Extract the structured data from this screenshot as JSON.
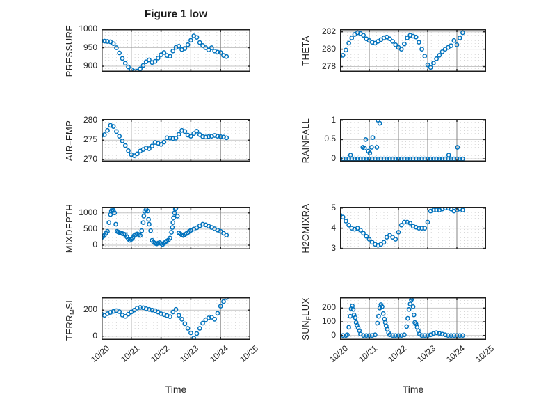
{
  "figure": {
    "title": "Figure 1 low",
    "xlabel": "Time",
    "background": "#ffffff",
    "accent_color": "#0072BD",
    "text_color": "#262626",
    "x_tick_labels": [
      "10/20",
      "10/21",
      "10/22",
      "10/23",
      "10/24",
      "10/25"
    ]
  },
  "chart_data": [
    {
      "type": "scatter",
      "name": "PRESSURE",
      "ylabel": {
        "pre": "PRESSURE",
        "sub": "",
        "post": ""
      },
      "ylim": [
        885,
        1000
      ],
      "ytick_vals": [
        900,
        950,
        1000
      ],
      "ytick_labels": [
        "900",
        "950",
        "1000"
      ],
      "xlim": [
        0,
        5
      ],
      "x0": 0,
      "xstep": 0.1,
      "y": [
        968,
        968,
        967,
        966,
        961,
        950,
        936,
        921,
        908,
        898,
        891,
        886,
        887,
        893,
        902,
        912,
        917,
        910,
        913,
        922,
        931,
        937,
        929,
        927,
        941,
        951,
        954,
        945,
        948,
        958,
        970,
        982,
        978,
        964,
        956,
        950,
        944,
        950,
        941,
        938,
        937,
        929,
        926
      ]
    },
    {
      "type": "scatter",
      "name": "THETA",
      "ylabel": {
        "pre": "THETA",
        "sub": "",
        "post": ""
      },
      "ylim": [
        277.4,
        282.3
      ],
      "ytick_vals": [
        278,
        280,
        282
      ],
      "ytick_labels": [
        "278",
        "280",
        "282"
      ],
      "xlim": [
        0,
        5
      ],
      "x0": 0,
      "xstep": 0.1,
      "y": [
        279.2,
        279.3,
        279.9,
        280.7,
        281.3,
        281.7,
        281.9,
        281.8,
        281.6,
        281.2,
        281.0,
        280.8,
        280.7,
        280.9,
        281.1,
        281.3,
        281.4,
        281.2,
        280.9,
        280.5,
        280.2,
        280.0,
        280.6,
        281.3,
        281.6,
        281.5,
        281.4,
        280.8,
        280.0,
        279.2,
        278.2,
        277.9,
        278.4,
        278.9,
        279.3,
        279.7,
        280.0,
        280.2,
        280.4,
        281.0,
        280.5,
        281.3,
        281.9
      ]
    },
    {
      "type": "scatter",
      "name": "AIR_TEMP",
      "ylabel": {
        "pre": "AIR",
        "sub": "T",
        "post": "EMP"
      },
      "ylim": [
        269.5,
        280.4
      ],
      "ytick_vals": [
        270,
        275,
        280
      ],
      "ytick_labels": [
        "270",
        "275",
        "280"
      ],
      "xlim": [
        0,
        5
      ],
      "x0": 0,
      "xstep": 0.1,
      "y": [
        276.2,
        276.4,
        277.5,
        278.8,
        278.5,
        277.2,
        276.0,
        274.8,
        273.6,
        272.3,
        271.3,
        271.0,
        271.5,
        272.2,
        272.6,
        273.0,
        272.8,
        273.5,
        274.4,
        274.2,
        273.9,
        274.5,
        275.6,
        275.5,
        275.4,
        275.5,
        276.5,
        277.5,
        277.2,
        276.3,
        276.0,
        276.7,
        277.3,
        276.4,
        275.9,
        275.8,
        275.9,
        276.0,
        276.2,
        276.0,
        275.9,
        275.8,
        275.6
      ]
    },
    {
      "type": "scatter",
      "name": "RAINFALL",
      "ylabel": {
        "pre": "RAINFALL",
        "sub": "",
        "post": ""
      },
      "ylim": [
        -0.07,
        1.03
      ],
      "ytick_vals": [
        0,
        0.5,
        1
      ],
      "ytick_labels": [
        "0",
        "0.5",
        "1"
      ],
      "xlim": [
        0,
        5
      ],
      "x": [
        0,
        0.1,
        0.2,
        0.3,
        0.4,
        0.5,
        0.6,
        0.7,
        0.8,
        0.9,
        1,
        1.1,
        1.2,
        1.3,
        1.4,
        1.5,
        1.6,
        1.7,
        1.8,
        1.9,
        2,
        2.1,
        2.2,
        2.3,
        2.4,
        2.5,
        2.6,
        2.7,
        2.8,
        2.9,
        3,
        3.1,
        3.2,
        3.3,
        3.4,
        3.5,
        3.6,
        3.7,
        3.8,
        3.9,
        4,
        4.1,
        4.2,
        0.36,
        0.78,
        0.84,
        0.88,
        0.97,
        1.02,
        1.08,
        1.12,
        1.26,
        1.3,
        1.36,
        3.72,
        4.02
      ],
      "y": [
        0,
        0,
        0,
        0,
        0,
        0,
        0,
        0,
        0,
        0,
        0,
        0,
        0,
        0,
        0,
        0,
        0,
        0,
        0,
        0,
        0,
        0,
        0,
        0,
        0,
        0,
        0,
        0,
        0,
        0,
        0,
        0,
        0,
        0,
        0,
        0,
        0,
        0,
        0,
        0,
        0,
        0,
        0,
        0.1,
        0.3,
        0.28,
        0.5,
        0.2,
        0.15,
        0.3,
        0.55,
        0.3,
        1,
        0.92,
        0.1,
        0.3
      ]
    },
    {
      "type": "scatter",
      "name": "MIXDEPTH",
      "ylabel": {
        "pre": "MIXDEPTH",
        "sub": "",
        "post": ""
      },
      "ylim": [
        -130,
        1190
      ],
      "ytick_vals": [
        0,
        500,
        1000
      ],
      "ytick_labels": [
        "0",
        "500",
        "1000"
      ],
      "xlim": [
        0,
        5
      ],
      "x": [
        0,
        0.05,
        0.1,
        0.15,
        0.2,
        0.25,
        0.3,
        0.33,
        0.36,
        0.4,
        0.44,
        0.48,
        0.52,
        0.56,
        0.6,
        0.65,
        0.7,
        0.75,
        0.8,
        0.85,
        0.9,
        0.95,
        1,
        1.05,
        1.1,
        1.15,
        1.2,
        1.25,
        1.3,
        1.35,
        1.4,
        1.42,
        1.45,
        1.5,
        1.55,
        1.58,
        1.6,
        1.65,
        1.7,
        1.75,
        1.8,
        1.85,
        1.9,
        1.95,
        2,
        2.05,
        2.1,
        2.15,
        2.2,
        2.25,
        2.3,
        2.35,
        2.38,
        2.4,
        2.42,
        2.45,
        2.48,
        2.5,
        2.55,
        2.6,
        2.65,
        2.7,
        2.75,
        2.8,
        2.85,
        2.9,
        2.95,
        3,
        3.1,
        3.2,
        3.3,
        3.4,
        3.5,
        3.6,
        3.7,
        3.8,
        3.9,
        4,
        4.1,
        4.2
      ],
      "y": [
        230,
        270,
        310,
        370,
        430,
        700,
        950,
        1060,
        1100,
        1080,
        1000,
        650,
        430,
        410,
        395,
        380,
        360,
        345,
        330,
        260,
        190,
        150,
        180,
        230,
        300,
        330,
        350,
        330,
        300,
        450,
        700,
        900,
        1050,
        1100,
        1060,
        800,
        650,
        450,
        150,
        90,
        60,
        40,
        60,
        80,
        50,
        20,
        60,
        100,
        130,
        160,
        220,
        400,
        550,
        700,
        850,
        1000,
        1120,
        1150,
        900,
        380,
        350,
        320,
        300,
        330,
        360,
        390,
        430,
        460,
        500,
        540,
        600,
        650,
        630,
        590,
        550,
        510,
        470,
        430,
        370,
        310
      ]
    },
    {
      "type": "scatter",
      "name": "H2OMIXRA",
      "ylabel": {
        "pre": "H2OMIXRA",
        "sub": "",
        "post": ""
      },
      "ylim": [
        2.95,
        5.06
      ],
      "ytick_vals": [
        3,
        4,
        5
      ],
      "ytick_labels": [
        "3",
        "4",
        "5"
      ],
      "xlim": [
        0,
        5
      ],
      "x0": 0,
      "xstep": 0.1,
      "y": [
        4.65,
        4.55,
        4.35,
        4.15,
        4.0,
        3.95,
        4.0,
        3.9,
        3.75,
        3.6,
        3.45,
        3.3,
        3.2,
        3.15,
        3.2,
        3.3,
        3.55,
        3.65,
        3.55,
        3.45,
        3.8,
        4.15,
        4.3,
        4.3,
        4.25,
        4.1,
        4.05,
        4.0,
        4.0,
        4.0,
        4.3,
        4.85,
        4.9,
        4.9,
        4.9,
        4.95,
        5.0,
        5.0,
        4.95,
        4.85,
        4.9,
        4.95,
        4.9
      ]
    },
    {
      "type": "scatter",
      "name": "TERR_MSL",
      "ylabel": {
        "pre": "TERR",
        "sub": "M",
        "post": "SL"
      },
      "ylim": [
        -28,
        297
      ],
      "ytick_vals": [
        0,
        200
      ],
      "ytick_labels": [
        "0",
        "200"
      ],
      "xlim": [
        0,
        5
      ],
      "x0": 0,
      "xstep": 0.1,
      "y": [
        170,
        160,
        172,
        182,
        190,
        196,
        188,
        162,
        152,
        168,
        185,
        200,
        215,
        220,
        218,
        210,
        205,
        200,
        195,
        185,
        172,
        165,
        158,
        150,
        185,
        205,
        160,
        130,
        95,
        60,
        25,
        -15,
        20,
        60,
        100,
        125,
        140,
        145,
        130,
        175,
        230,
        265,
        295
      ]
    },
    {
      "type": "scatter",
      "name": "SUN_FLUX",
      "ylabel": {
        "pre": "SUN",
        "sub": "F",
        "post": "LUX"
      },
      "ylim": [
        -32,
        278
      ],
      "ytick_vals": [
        0,
        100,
        200
      ],
      "ytick_labels": [
        "0",
        "100",
        "200"
      ],
      "xlim": [
        0,
        5
      ],
      "x": [
        0,
        0.1,
        0.2,
        0.25,
        0.3,
        0.35,
        0.38,
        0.42,
        0.45,
        0.48,
        0.52,
        0.55,
        0.58,
        0.62,
        0.66,
        0.7,
        0.8,
        0.9,
        1,
        1.1,
        1.2,
        1.28,
        1.32,
        1.36,
        1.4,
        1.44,
        1.48,
        1.52,
        1.55,
        1.58,
        1.62,
        1.66,
        1.7,
        1.8,
        1.9,
        2,
        2.1,
        2.2,
        2.28,
        2.32,
        2.36,
        2.4,
        2.44,
        2.47,
        2.5,
        2.53,
        2.56,
        2.6,
        2.64,
        2.68,
        2.72,
        2.8,
        2.9,
        3,
        3.1,
        3.2,
        3.3,
        3.4,
        3.5,
        3.6,
        3.7,
        3.8,
        3.9,
        4,
        4.1,
        4.2
      ],
      "y": [
        0,
        0,
        0,
        5,
        60,
        140,
        195,
        215,
        190,
        150,
        130,
        95,
        75,
        55,
        35,
        10,
        0,
        0,
        0,
        0,
        5,
        90,
        140,
        200,
        225,
        210,
        160,
        120,
        95,
        70,
        45,
        20,
        5,
        0,
        0,
        0,
        0,
        5,
        65,
        125,
        190,
        230,
        260,
        270,
        210,
        150,
        95,
        85,
        60,
        35,
        10,
        0,
        0,
        0,
        5,
        15,
        20,
        15,
        10,
        5,
        0,
        0,
        0,
        0,
        0,
        0
      ]
    }
  ]
}
